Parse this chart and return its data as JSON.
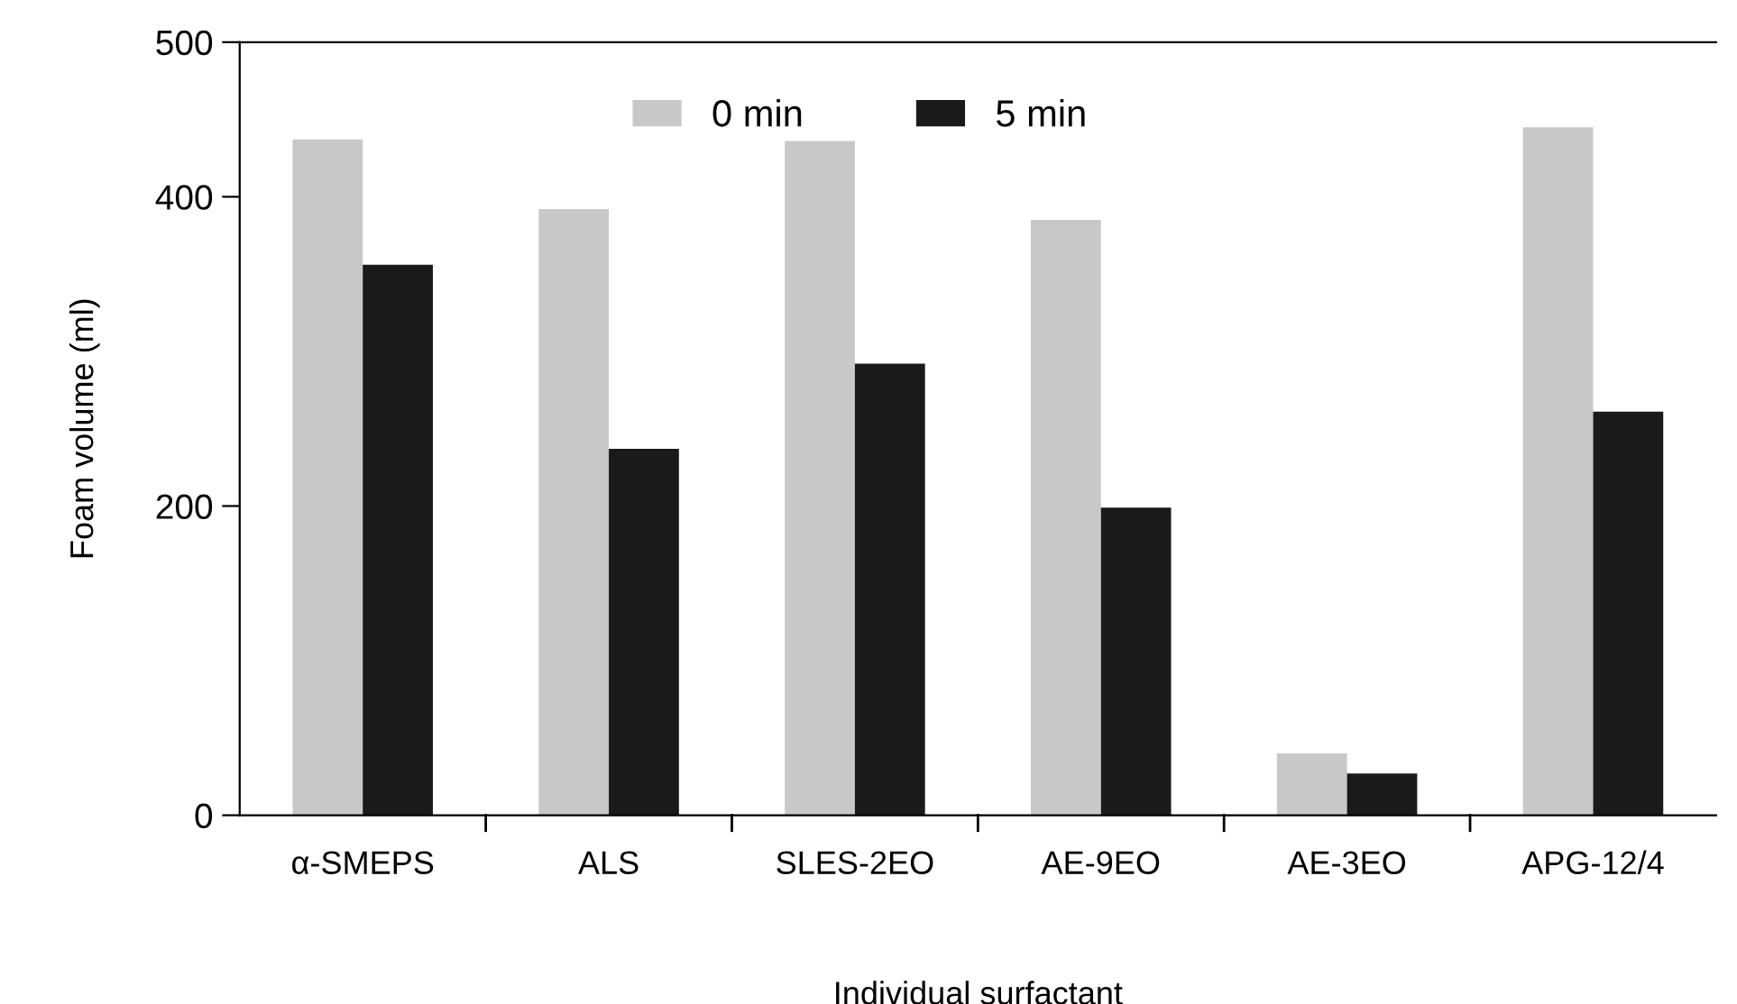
{
  "chart_data": {
    "type": "bar",
    "xlabel": "Individual surfactant",
    "ylabel": "Foam volume (ml)",
    "categories": [
      "α-SMEPS",
      "ALS",
      "SLES-2EO",
      "AE-9EO",
      "AE-3EO",
      "APG-12/4"
    ],
    "series": [
      {
        "name": "0 min",
        "color": "#c8c8c8",
        "values": [
          437,
          392,
          436,
          385,
          40,
          445
        ]
      },
      {
        "name": "5 min",
        "color": "#1a1a1a",
        "values": [
          356,
          237,
          292,
          199,
          27,
          261
        ]
      }
    ],
    "ylim": [
      0,
      500
    ],
    "yticks": [
      0,
      200,
      400,
      500
    ],
    "grid": false,
    "legend": "top"
  }
}
